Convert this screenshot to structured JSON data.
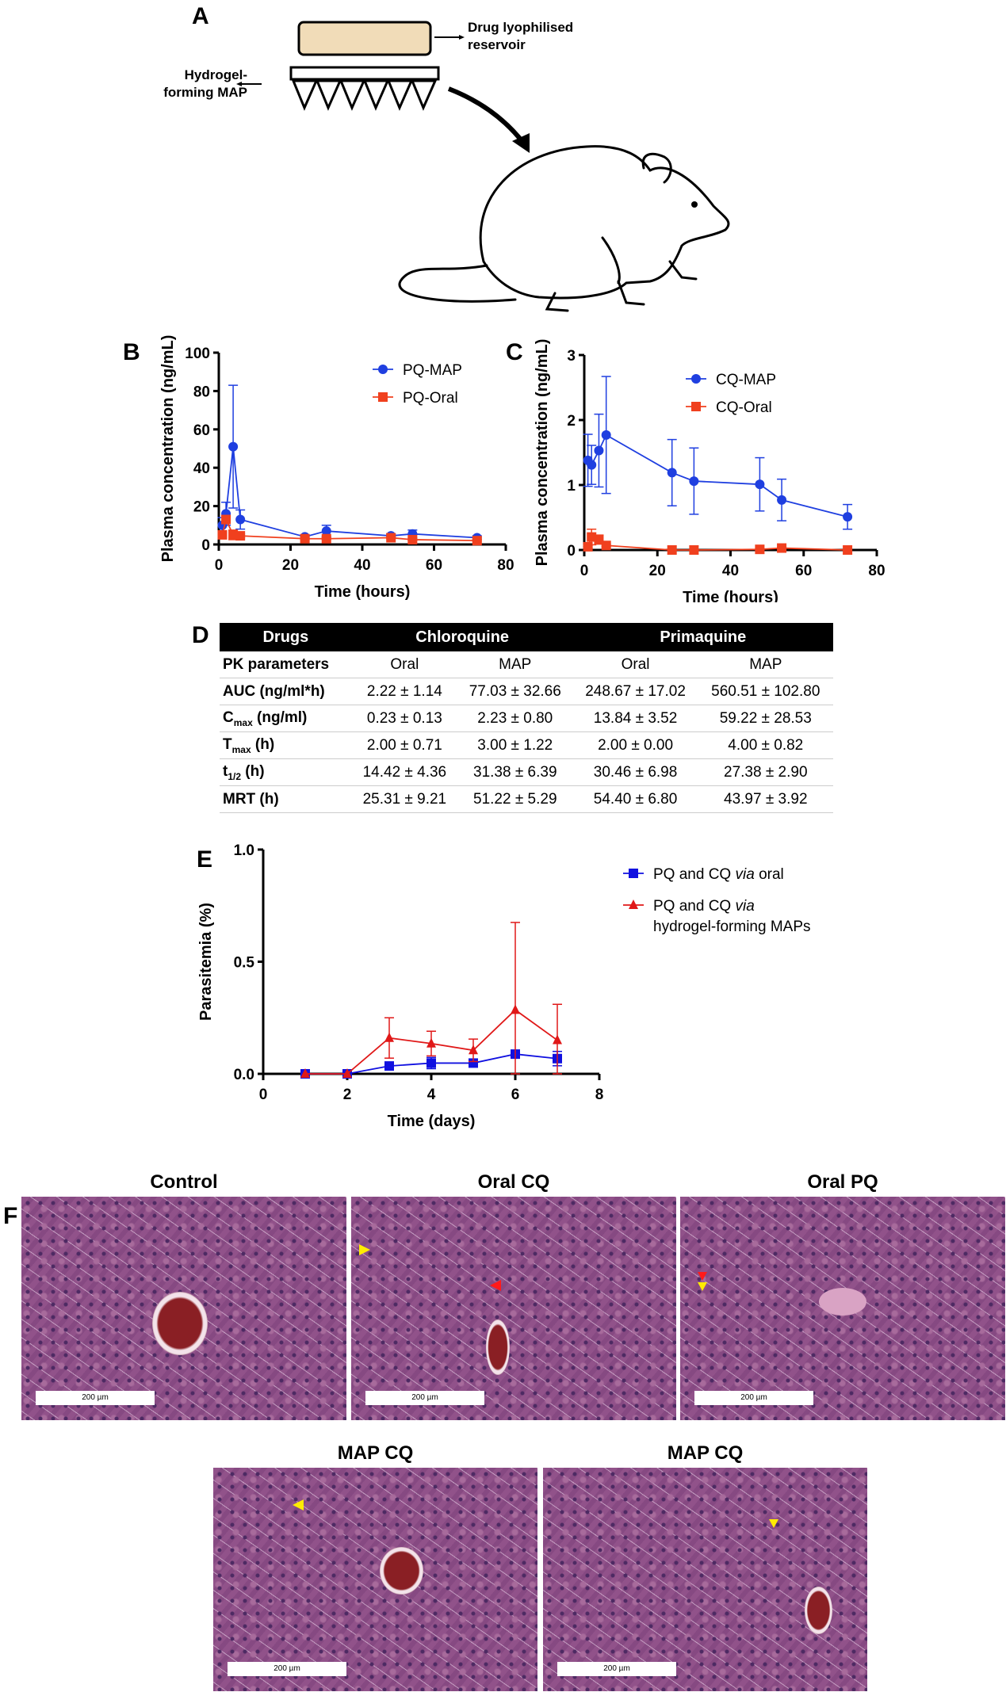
{
  "panel_labels": {
    "a": "A",
    "b": "B",
    "c": "C",
    "d": "D",
    "e": "E",
    "f": "F"
  },
  "schematic": {
    "reservoir_label_1": "Drug lyophilised",
    "reservoir_label_2": "reservoir",
    "map_label_1": "Hydrogel-",
    "map_label_2": "forming MAP",
    "reservoir_color": "#f1dcb8"
  },
  "chart_data": [
    {
      "id": "B",
      "type": "line",
      "xlabel": "Time (hours)",
      "ylabel": "Plasma concentration (ng/mL)",
      "xlim": [
        0,
        80
      ],
      "ylim": [
        0,
        100
      ],
      "xticks": [
        0,
        20,
        40,
        60,
        80
      ],
      "yticks": [
        0,
        20,
        40,
        60,
        80,
        100
      ],
      "legend": "top-right",
      "grid": false,
      "series": [
        {
          "name": "PQ-MAP",
          "color": "#1f3fe0",
          "marker": "circle",
          "x": [
            1,
            2,
            4,
            6,
            24,
            30,
            48,
            54,
            72
          ],
          "y": [
            10,
            16,
            51,
            13,
            4,
            7,
            4.5,
            5.5,
            3.5
          ],
          "err": [
            4,
            6,
            32,
            5,
            1,
            3,
            1,
            2,
            1
          ]
        },
        {
          "name": "PQ-Oral",
          "color": "#f0401e",
          "marker": "square",
          "x": [
            1,
            2,
            4,
            6,
            24,
            30,
            48,
            54,
            72
          ],
          "y": [
            5,
            13,
            5,
            4.5,
            3,
            3,
            3.5,
            2.5,
            2
          ],
          "err": [
            1,
            2,
            2.5,
            1,
            0.5,
            0.5,
            0.5,
            0.5,
            0.5
          ]
        }
      ]
    },
    {
      "id": "C",
      "type": "line",
      "xlabel": "Time (hours)",
      "ylabel": "Plasma concentration (ng/mL)",
      "xlim": [
        0,
        80
      ],
      "ylim": [
        0,
        3
      ],
      "xticks": [
        0,
        20,
        40,
        60,
        80
      ],
      "yticks": [
        0,
        1,
        2,
        3
      ],
      "legend": "top-right",
      "grid": false,
      "series": [
        {
          "name": "CQ-MAP",
          "color": "#1f3fe0",
          "marker": "circle",
          "x": [
            1,
            2,
            4,
            6,
            24,
            30,
            48,
            54,
            72
          ],
          "y": [
            1.38,
            1.31,
            1.53,
            1.77,
            1.19,
            1.06,
            1.01,
            0.77,
            0.51
          ],
          "err": [
            0.4,
            0.3,
            0.56,
            0.9,
            0.51,
            0.51,
            0.41,
            0.32,
            0.19
          ]
        },
        {
          "name": "CQ-Oral",
          "color": "#f0401e",
          "marker": "square",
          "x": [
            1,
            2,
            4,
            6,
            24,
            30,
            48,
            54,
            72
          ],
          "y": [
            0.05,
            0.2,
            0.16,
            0.07,
            0,
            0,
            0.01,
            0.03,
            0
          ],
          "err": [
            0.02,
            0.12,
            0.07,
            0.02,
            0,
            0,
            0.01,
            0.01,
            0
          ]
        }
      ]
    },
    {
      "id": "E",
      "type": "line",
      "xlabel": "Time (days)",
      "ylabel": "Parasitemia (%)",
      "xlim": [
        0,
        8
      ],
      "ylim": [
        0,
        1.0
      ],
      "xticks": [
        0,
        2,
        4,
        6,
        8
      ],
      "yticks": [
        0.0,
        0.5,
        1.0
      ],
      "ytick_labels": [
        "0.0",
        "0.5",
        "1.0"
      ],
      "legend": "right",
      "grid": false,
      "series": [
        {
          "name": "PQ and CQ via oral",
          "color": "#1010e0",
          "marker": "square",
          "x": [
            1,
            2,
            3,
            4,
            5,
            6,
            7
          ],
          "y": [
            0,
            0,
            0.035,
            0.048,
            0.048,
            0.088,
            0.068
          ],
          "err": [
            0,
            0,
            0.01,
            0.025,
            0.01,
            0.01,
            0.032
          ]
        },
        {
          "name": "PQ and CQ via hydrogel-forming MAPs",
          "color": "#e01818",
          "marker": "triangle",
          "x": [
            1,
            2,
            3,
            4,
            5,
            6,
            7
          ],
          "y": [
            0,
            0,
            0.16,
            0.135,
            0.105,
            0.285,
            0.15
          ],
          "err": [
            0,
            0,
            0.09,
            0.055,
            0.05,
            0.39,
            0.16
          ]
        }
      ]
    }
  ],
  "table": {
    "header": [
      "Drugs",
      "Chloroquine",
      "Primaquine"
    ],
    "subheader": [
      "PK parameters",
      "Oral",
      "MAP",
      "Oral",
      "MAP"
    ],
    "rows": [
      {
        "label": "AUC (ng/ml*h)",
        "label_main": "AUC (ng/ml*h)",
        "label_sub": "",
        "label_rest": "",
        "values": [
          "2.22 ± 1.14",
          "77.03 ± 32.66",
          "248.67 ± 17.02",
          "560.51 ± 102.80"
        ]
      },
      {
        "label_main": "C",
        "label_sub": "max",
        "label_rest": " (ng/ml)",
        "values": [
          "0.23 ± 0.13",
          "2.23 ± 0.80",
          "13.84 ± 3.52",
          "59.22 ± 28.53"
        ]
      },
      {
        "label_main": "T",
        "label_sub": "max",
        "label_rest": " (h)",
        "values": [
          "2.00 ± 0.71",
          "3.00 ± 1.22",
          "2.00 ± 0.00",
          "4.00 ± 0.82"
        ]
      },
      {
        "label_main": "t",
        "label_sub": "1/2",
        "label_rest": " (h)",
        "values": [
          "14.42 ± 4.36",
          "31.38 ± 6.39",
          "30.46 ± 6.98",
          "27.38 ± 2.90"
        ]
      },
      {
        "label_main": "MRT (h)",
        "label_sub": "",
        "label_rest": "",
        "values": [
          "25.31 ± 9.21",
          "51.22 ± 5.29",
          "54.40 ± 6.80",
          "43.97 ± 3.92"
        ]
      }
    ]
  },
  "histology": {
    "scale_label": "200 µm",
    "panels": [
      {
        "title": "Control"
      },
      {
        "title": "Oral CQ"
      },
      {
        "title": "Oral PQ"
      },
      {
        "title": "MAP CQ"
      },
      {
        "title": "MAP CQ"
      }
    ]
  }
}
